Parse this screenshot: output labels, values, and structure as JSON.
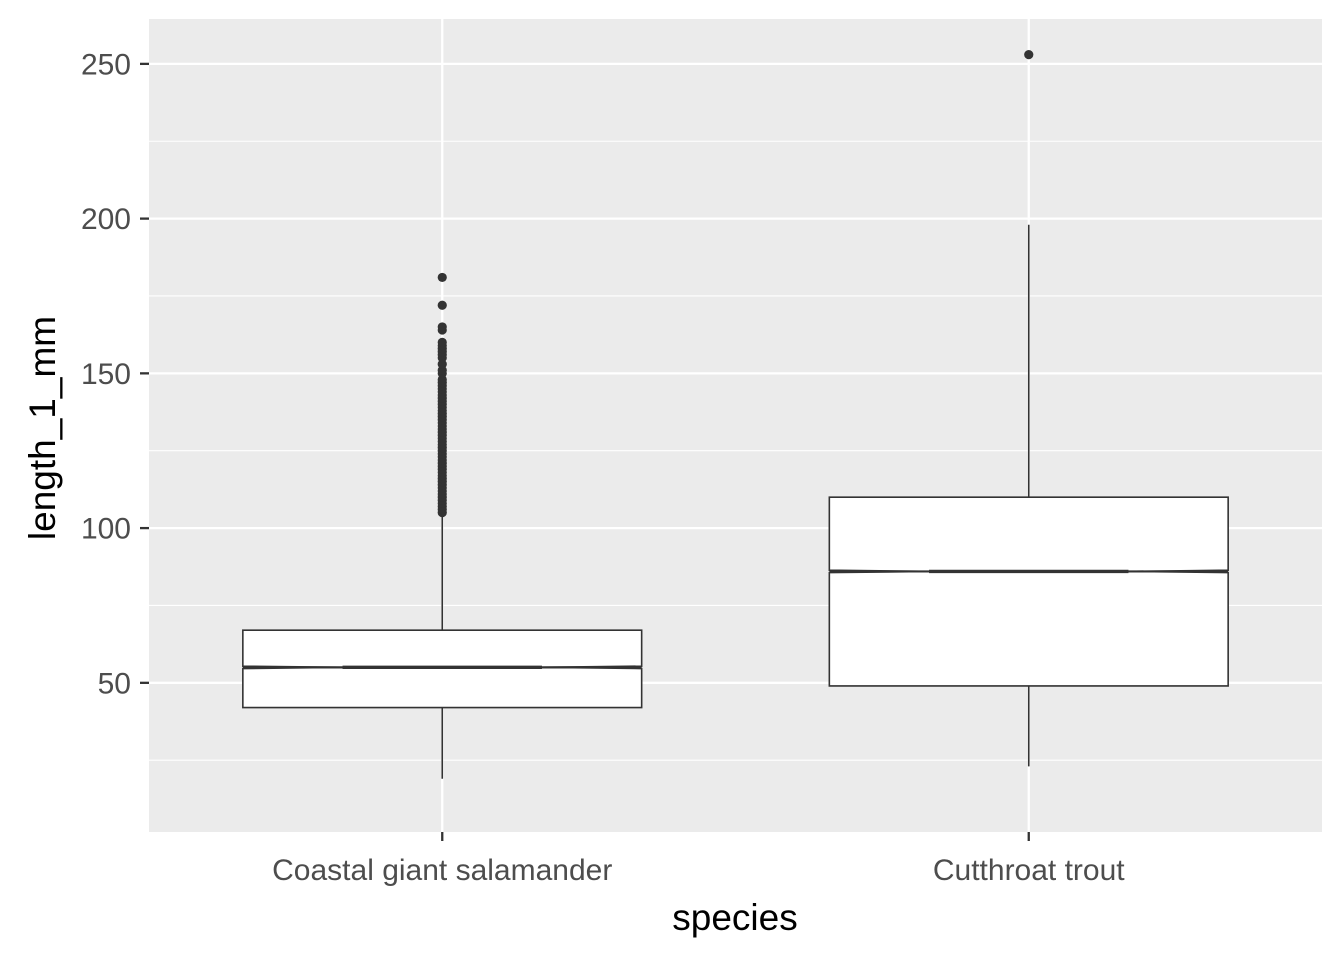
{
  "chart_data": {
    "type": "box",
    "title": "",
    "xlabel": "species",
    "ylabel": "length_1_mm",
    "categories": [
      "Coastal giant salamander",
      "Cutthroat trout"
    ],
    "notched": true,
    "ylim": [
      1.8,
      264.5
    ],
    "yticks": [
      50,
      100,
      150,
      200,
      250
    ],
    "ytick_labels": [
      "50",
      "100",
      "150",
      "200",
      "250"
    ],
    "grid": true,
    "legend": "none",
    "boxes": [
      {
        "category": "Coastal giant salamander",
        "whisker_low": 19,
        "q1": 42,
        "median": 55,
        "q3": 67,
        "whisker_high": 104,
        "outliers": [
          105,
          106,
          107,
          108,
          109,
          110,
          111,
          112,
          113,
          114,
          115,
          116,
          117,
          118,
          119,
          120,
          121,
          122,
          123,
          124,
          125,
          126,
          127,
          128,
          129,
          130,
          131,
          132,
          133,
          134,
          135,
          136,
          137,
          138,
          139,
          140,
          141,
          142,
          143,
          144,
          145,
          146,
          147,
          148,
          150,
          151,
          153,
          155,
          156,
          157,
          158,
          159,
          160,
          164,
          165,
          172,
          181
        ]
      },
      {
        "category": "Cutthroat trout",
        "whisker_low": 23,
        "q1": 49,
        "median": 86,
        "q3": 110,
        "whisker_high": 198,
        "outliers": [
          253
        ]
      }
    ],
    "colors": {
      "panel_background": "#ebebeb",
      "grid_major": "#ffffff",
      "grid_minor": "#ffffff",
      "box_fill": "#ffffff",
      "box_line": "#333333",
      "outlier": "#333333",
      "tick_label": "#4d4d4d",
      "axis_title": "#000000",
      "tick_mark": "#333333"
    }
  }
}
